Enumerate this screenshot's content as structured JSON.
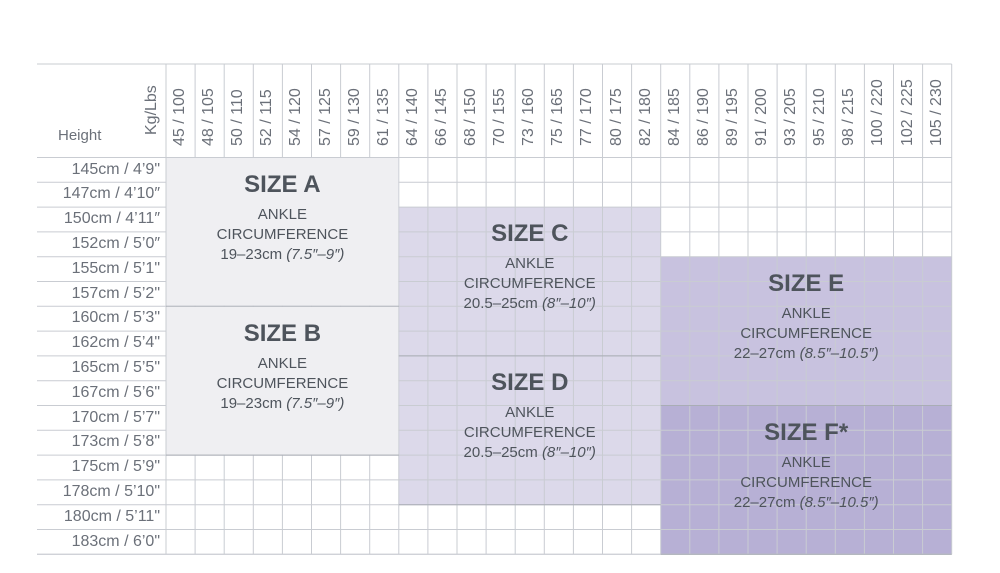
{
  "header": {
    "height_label": "Height",
    "weight_label": "Kg/Lbs"
  },
  "weights": [
    "45 / 100",
    "48 / 105",
    "50 / 110",
    "52 / 115",
    "54 / 120",
    "57 / 125",
    "59 / 130",
    "61 / 135",
    "64 / 140",
    "66 / 145",
    "68 / 150",
    "70 / 155",
    "73 / 160",
    "75 / 165",
    "77 / 170",
    "80 / 175",
    "82 / 180",
    "84 / 185",
    "86 / 190",
    "89 / 195",
    "91 / 200",
    "93 / 205",
    "95 / 210",
    "98 / 215",
    "100 / 220",
    "102 / 225",
    "105 / 230"
  ],
  "heights": [
    "145cm / 4’9\"",
    "147cm / 4’10″",
    "150cm / 4’11″",
    "152cm / 5’0″",
    "155cm / 5’1\"",
    "157cm / 5’2\"",
    "160cm / 5’3\"",
    "162cm / 5’4\"",
    "165cm / 5’5\"",
    "167cm / 5’6\"",
    "170cm / 5’7\"",
    "173cm / 5’8\"",
    "175cm / 5’9\"",
    "178cm / 5’10\"",
    "180cm / 5’11\"",
    "183cm / 6’0\""
  ],
  "colors": {
    "gridline": "#c9ccd2",
    "size_ab": "#efeff2",
    "size_cd": "#dcd9ea",
    "size_e": "#c8c2df",
    "size_f": "#b7b0d5"
  },
  "sizes": [
    {
      "id": "a",
      "title": "SIZE A",
      "line1": "ANKLE",
      "line2": "CIRCUMFERENCE",
      "range": "19–23cm",
      "imperial": "(7.5″–9″)",
      "weight_start": 0,
      "weight_end": 7,
      "height_start": 0,
      "height_end": 5,
      "fill": "#efeff2"
    },
    {
      "id": "b",
      "title": "SIZE B",
      "line1": "ANKLE",
      "line2": "CIRCUMFERENCE",
      "range": "19–23cm",
      "imperial": "(7.5″–9″)",
      "weight_start": 0,
      "weight_end": 7,
      "height_start": 6,
      "height_end": 11,
      "fill": "#efeff2"
    },
    {
      "id": "c",
      "title": "SIZE C",
      "line1": "ANKLE",
      "line2": "CIRCUMFERENCE",
      "range": "20.5–25cm",
      "imperial": "(8″–10″)",
      "weight_start": 8,
      "weight_end": 16,
      "height_start": 2,
      "height_end": 7,
      "fill": "#dcd9ea"
    },
    {
      "id": "d",
      "title": "SIZE D",
      "line1": "ANKLE",
      "line2": "CIRCUMFERENCE",
      "range": "20.5–25cm",
      "imperial": "(8″–10″)",
      "weight_start": 8,
      "weight_end": 16,
      "height_start": 8,
      "height_end": 13,
      "fill": "#dcd9ea"
    },
    {
      "id": "e",
      "title": "SIZE E",
      "line1": "ANKLE",
      "line2": "CIRCUMFERENCE",
      "range": "22–27cm",
      "imperial": "(8.5″–10.5″)",
      "weight_start": 17,
      "weight_end": 26,
      "height_start": 4,
      "height_end": 9,
      "fill": "#c8c2df"
    },
    {
      "id": "f",
      "title": "SIZE F*",
      "line1": "ANKLE",
      "line2": "CIRCUMFERENCE",
      "range": "22–27cm",
      "imperial": "(8.5″–10.5″)",
      "weight_start": 17,
      "weight_end": 26,
      "height_start": 10,
      "height_end": 15,
      "fill": "#b7b0d5"
    }
  ]
}
